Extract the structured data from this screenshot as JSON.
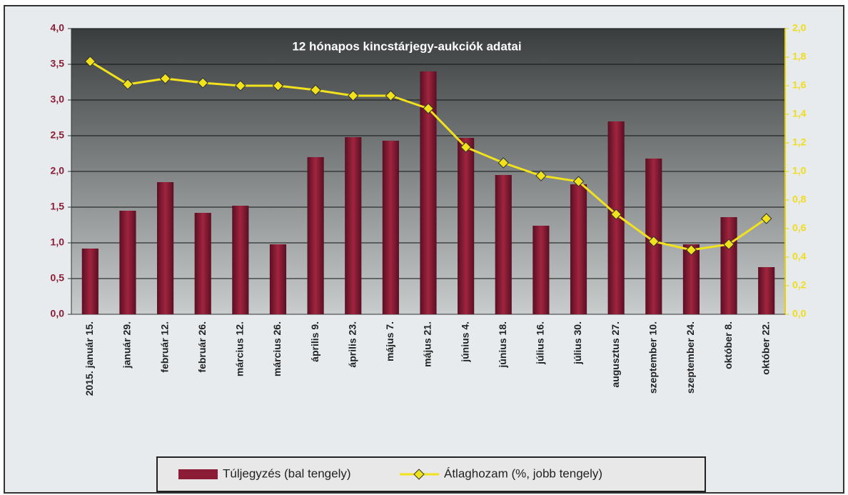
{
  "chart_data": {
    "type": "bar",
    "title": "12 hónapos kincstárjegy-aukciók  adatai",
    "categories": [
      "2015. január 15.",
      "január 29.",
      "február 12.",
      "február 26.",
      "március 12.",
      "március 26.",
      "április 9.",
      "április 23.",
      "május 7.",
      "május 21.",
      "június 4.",
      "június 18.",
      "július 16.",
      "július 30.",
      "augusztus 27.",
      "szeptember 10.",
      "szeptember 24.",
      "október 8.",
      "október 22."
    ],
    "series": [
      {
        "name": "Túljegyzés (bal tengely)",
        "type": "bar",
        "color": "#8c1c36",
        "values": [
          0.92,
          1.45,
          1.85,
          1.42,
          1.52,
          0.98,
          2.2,
          2.48,
          2.43,
          3.4,
          2.47,
          1.95,
          1.24,
          1.82,
          2.7,
          2.18,
          0.98,
          1.36,
          0.66
        ]
      },
      {
        "name": "Átlaghozam (%, jobb tengely)",
        "type": "line",
        "axis": "y2",
        "color": "#f2e21c",
        "values": [
          1.77,
          1.61,
          1.65,
          1.62,
          1.6,
          1.6,
          1.57,
          1.53,
          1.53,
          1.44,
          1.17,
          1.06,
          0.97,
          0.93,
          0.7,
          0.51,
          0.45,
          0.49,
          0.67
        ]
      }
    ],
    "ylim": [
      0,
      4
    ],
    "yticks": [
      {
        "value": 0,
        "label": "0,0"
      },
      {
        "value": 0.5,
        "label": "0,5"
      },
      {
        "value": 1,
        "label": "1,0"
      },
      {
        "value": 1.5,
        "label": "1,5"
      },
      {
        "value": 2,
        "label": "2,0"
      },
      {
        "value": 2.5,
        "label": "2,5"
      },
      {
        "value": 3,
        "label": "3,0"
      },
      {
        "value": 3.5,
        "label": "3,5"
      },
      {
        "value": 4,
        "label": "4,0"
      }
    ],
    "y2lim": [
      0,
      2
    ],
    "y2ticks": [
      {
        "value": 0,
        "label": "0,0"
      },
      {
        "value": 0.2,
        "label": "0,2"
      },
      {
        "value": 0.4,
        "label": "0,4"
      },
      {
        "value": 0.6,
        "label": "0,6"
      },
      {
        "value": 0.8,
        "label": "0,8"
      },
      {
        "value": 1,
        "label": "1,0"
      },
      {
        "value": 1.2,
        "label": "1,2"
      },
      {
        "value": 1.4,
        "label": "1,4"
      },
      {
        "value": 1.6,
        "label": "1,6"
      },
      {
        "value": 1.8,
        "label": "1,8"
      },
      {
        "value": 2,
        "label": "2,0"
      }
    ],
    "grid": true,
    "legend": "bottom"
  }
}
